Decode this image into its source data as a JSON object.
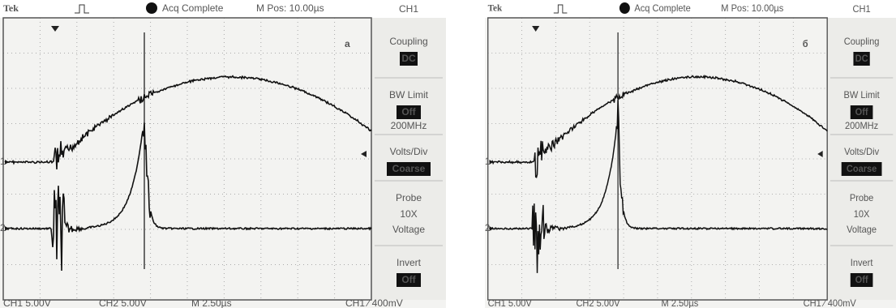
{
  "panels": [
    {
      "label": "а",
      "header": {
        "brand": "Tek",
        "status": "Acq Complete",
        "position": "M Pos: 10.00µs",
        "channel": "CH1"
      },
      "menu": [
        {
          "title": "Coupling",
          "value": "DC"
        },
        {
          "title": "BW Limit",
          "value": "Off",
          "note": "200MHz"
        },
        {
          "title": "Volts/Div",
          "value": "Coarse"
        },
        {
          "title": "Probe",
          "lines": [
            "10X",
            "Voltage"
          ]
        },
        {
          "title": "Invert",
          "value": "Off"
        }
      ],
      "markers": [
        "1",
        "2"
      ],
      "footer": {
        "ch1": "CH1  5.00V",
        "ch2": "CH2  5.00V",
        "time": "M 2.50µs",
        "trigger": "CH1 ∕ 400mV"
      }
    },
    {
      "label": "б",
      "header": {
        "brand": "Tek",
        "status": "Acq Complete",
        "position": "M Pos: 10.00µs",
        "channel": "CH1"
      },
      "menu": [
        {
          "title": "Coupling",
          "value": "DC"
        },
        {
          "title": "BW Limit",
          "value": "Off",
          "note": "200MHz"
        },
        {
          "title": "Volts/Div",
          "value": "Coarse"
        },
        {
          "title": "Probe",
          "lines": [
            "10X",
            "Voltage"
          ]
        },
        {
          "title": "Invert",
          "value": "Off"
        }
      ],
      "markers": [
        "1",
        "2"
      ],
      "footer": {
        "ch1": "CH1  5.00V",
        "ch2": "CH2  5.00V",
        "time": "M 2.50µs",
        "trigger": "CH1 ∕ 400mV"
      }
    }
  ]
}
